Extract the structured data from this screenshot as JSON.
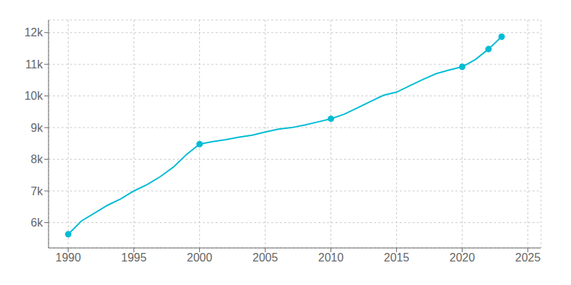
{
  "chart_data": {
    "type": "line",
    "series": [
      {
        "type": "line",
        "color": "#00bcd4",
        "x": [
          1990,
          1991,
          1992,
          1993,
          1994,
          1995,
          1996,
          1997,
          1998,
          1999,
          2000,
          2001,
          2002,
          2003,
          2004,
          2005,
          2006,
          2007,
          2008,
          2009,
          2010,
          2011,
          2012,
          2013,
          2014,
          2015,
          2016,
          2017,
          2018,
          2019,
          2020,
          2021,
          2022,
          2023
        ],
        "values": [
          5634,
          6050,
          6300,
          6550,
          6750,
          7000,
          7200,
          7450,
          7750,
          8150,
          8480,
          8560,
          8620,
          8700,
          8760,
          8860,
          8950,
          9000,
          9080,
          9180,
          9280,
          9420,
          9620,
          9820,
          10020,
          10120,
          10320,
          10520,
          10700,
          10820,
          10920,
          11150,
          11480,
          11870
        ]
      },
      {
        "type": "scatter",
        "color": "#00bcd4",
        "marker": "o",
        "x": [
          1990,
          2000,
          2010,
          2020,
          2022,
          2023
        ],
        "values": [
          5634,
          8480,
          9280,
          10920,
          11480,
          11870
        ]
      }
    ],
    "xlim": [
      1988.5,
      2026
    ],
    "ylim": [
      5200,
      12400
    ],
    "xticks": [
      1990,
      1995,
      2000,
      2005,
      2010,
      2015,
      2020,
      2025
    ],
    "yticks": [
      {
        "value": 6000,
        "label": "6k"
      },
      {
        "value": 7000,
        "label": "7k"
      },
      {
        "value": 8000,
        "label": "8k"
      },
      {
        "value": 9000,
        "label": "9k"
      },
      {
        "value": 10000,
        "label": "10k"
      },
      {
        "value": 11000,
        "label": "11k"
      },
      {
        "value": 12000,
        "label": "12k"
      }
    ],
    "grid": true
  }
}
